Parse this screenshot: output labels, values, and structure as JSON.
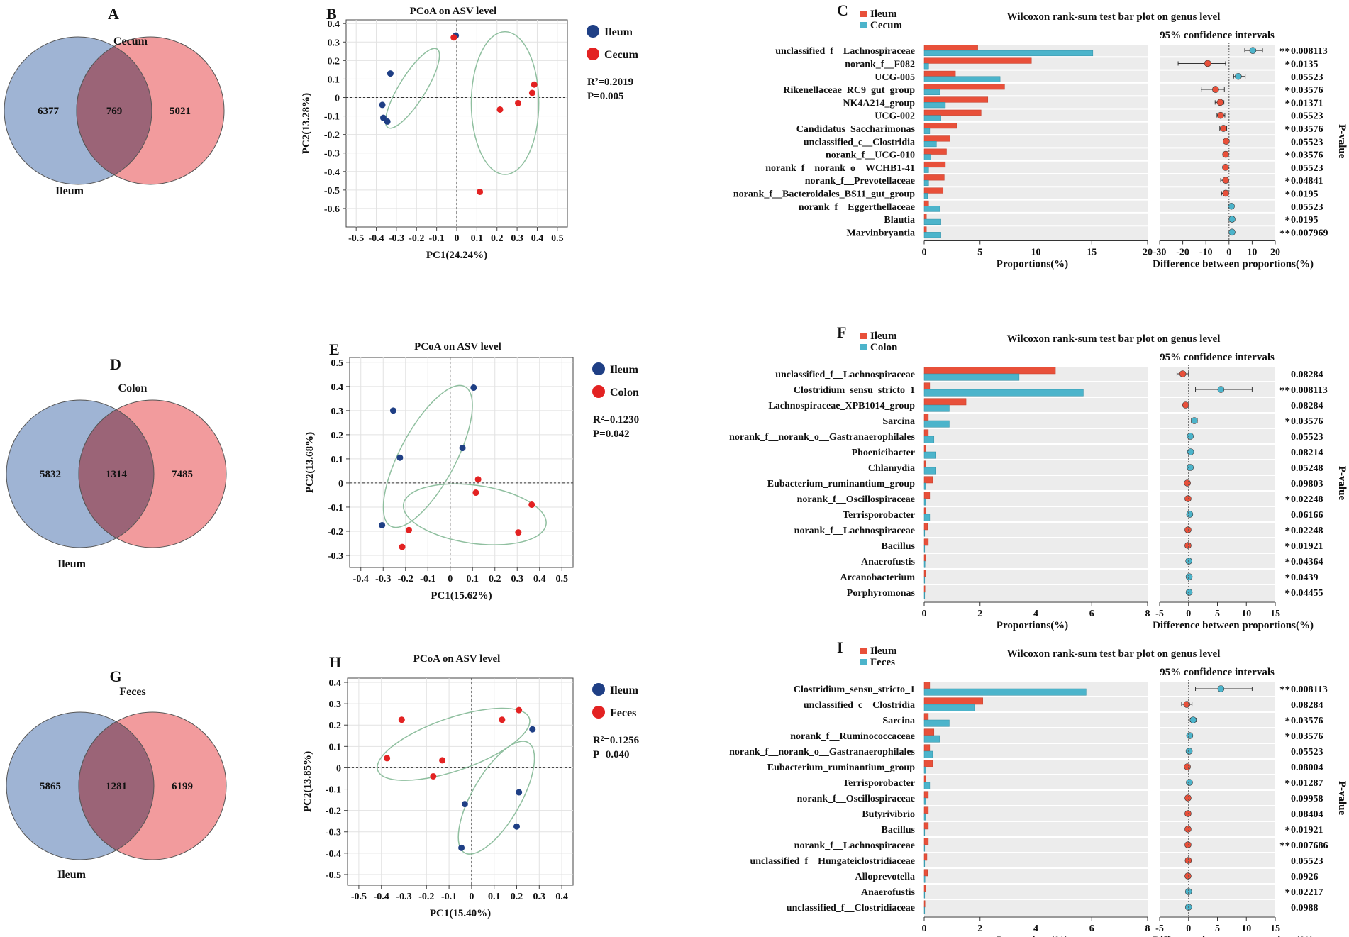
{
  "colors": {
    "ileum": "#e8503a",
    "ileum_dot": "#e32222",
    "blue_dot": "#1f3f85",
    "other": "#4cb4cb",
    "venn_blue": "#9fb4d4",
    "venn_red": "#f29b9d",
    "venn_overlap": "#9b6477",
    "ellipse": "#8fbf9f",
    "bar_bg": "#ececec",
    "star": "#e8503a"
  },
  "rows": [
    {
      "venn": {
        "panel_label": "A",
        "left_label": "Ileum",
        "right_label": "Cecum",
        "left_only": "6377",
        "shared": "769",
        "right_only": "5021"
      },
      "pcoa": {
        "panel_label": "B",
        "title": "PCoA on ASV level",
        "xlabel": "PC1(24.24%)",
        "ylabel": "PC2(13.28%)",
        "r2": "R²=0.2019",
        "p": "P=0.005",
        "legend": [
          "Ileum",
          "Cecum"
        ]
      },
      "wilcoxon": {
        "panel_label": "C",
        "title": "Wilcoxon rank-sum test bar plot on genus level",
        "ci_label": "95% confidence intervals",
        "legend": [
          "Ileum",
          "Cecum"
        ],
        "xlabel_left": "Proportions(%)",
        "xlabel_right": "Difference between proportions(%)",
        "pvalue_label": "P-value"
      }
    },
    {
      "venn": {
        "panel_label": "D",
        "left_label": "Ileum",
        "right_label": "Colon",
        "left_only": "5832",
        "shared": "1314",
        "right_only": "7485"
      },
      "pcoa": {
        "panel_label": "E",
        "title": "PCoA on ASV level",
        "xlabel": "PC1(15.62%)",
        "ylabel": "PC2(13.68%)",
        "r2": "R²=0.1230",
        "p": "P=0.042",
        "legend": [
          "Ileum",
          "Colon"
        ]
      },
      "wilcoxon": {
        "panel_label": "F",
        "title": "Wilcoxon rank-sum test bar plot on genus level",
        "ci_label": "95% confidence intervals",
        "legend": [
          "Ileum",
          "Colon"
        ],
        "xlabel_left": "Proportions(%)",
        "xlabel_right": "Difference between proportions(%)",
        "pvalue_label": "P-value"
      }
    },
    {
      "venn": {
        "panel_label": "G",
        "left_label": "Ileum",
        "right_label": "Feces",
        "left_only": "5865",
        "shared": "1281",
        "right_only": "6199"
      },
      "pcoa": {
        "panel_label": "H",
        "title": "PCoA on ASV level",
        "xlabel": "PC1(15.40%)",
        "ylabel": "PC2(13.85%)",
        "r2": "R²=0.1256",
        "p": "P=0.040",
        "legend": [
          "Ileum",
          "Feces"
        ]
      },
      "wilcoxon": {
        "panel_label": "I",
        "title": "Wilcoxon rank-sum test bar plot on genus level",
        "ci_label": "95% confidence intervals",
        "legend": [
          "Ileum",
          "Feces"
        ],
        "xlabel_left": "Proportions(%)",
        "xlabel_right": "Difference between proportions(%)",
        "pvalue_label": "P-value"
      }
    }
  ],
  "chart_data": [
    {
      "panel": "B",
      "type": "scatter",
      "title": "PCoA on ASV level",
      "xlabel": "PC1(24.24%)",
      "ylabel": "PC2(13.28%)",
      "xlim": [
        -0.55,
        0.55
      ],
      "ylim": [
        -0.7,
        0.42
      ],
      "xticks": [
        "-0.5",
        "-0.4",
        "-0.3",
        "-0.2",
        "-0.1",
        "0",
        "0.1",
        "0.2",
        "0.3",
        "0.4",
        "0.5"
      ],
      "xtick_values": [
        -0.5,
        -0.4,
        -0.3,
        -0.2,
        -0.1,
        0,
        0.1,
        0.2,
        0.3,
        0.4,
        0.5
      ],
      "yticks": [
        "0.4",
        "0.3",
        "0.2",
        "0.1",
        "0",
        "-0.1",
        "-0.2",
        "-0.3",
        "-0.4",
        "-0.5",
        "-0.6"
      ],
      "ytick_values": [
        0.4,
        0.3,
        0.2,
        0.1,
        0,
        -0.1,
        -0.2,
        -0.3,
        -0.4,
        -0.5,
        -0.6
      ],
      "series": [
        {
          "name": "Ileum",
          "points": [
            [
              -0.005,
              0.335
            ],
            [
              -0.33,
              0.13
            ],
            [
              -0.37,
              -0.04
            ],
            [
              -0.365,
              -0.11
            ],
            [
              -0.345,
              -0.13
            ]
          ],
          "ellipse": {
            "cx": -0.22,
            "cy": 0.05,
            "rx": 0.24,
            "ry": 0.068,
            "angle": -58
          }
        },
        {
          "name": "Cecum",
          "points": [
            [
              -0.015,
              0.325
            ],
            [
              0.115,
              -0.51
            ],
            [
              0.215,
              -0.065
            ],
            [
              0.305,
              -0.03
            ],
            [
              0.375,
              0.025
            ],
            [
              0.385,
              0.07
            ]
          ],
          "ellipse": {
            "cx": 0.24,
            "cy": -0.03,
            "rx": 0.175,
            "ry": 0.37,
            "angle": 0
          }
        }
      ]
    },
    {
      "panel": "C",
      "type": "bar",
      "title": "Wilcoxon rank-sum test bar plot on genus level",
      "categories": [
        "unclassified_f__Lachnospiraceae",
        "norank_f__F082",
        "UCG-005",
        "Rikenellaceae_RC9_gut_group",
        "NK4A214_group",
        "UCG-002",
        "Candidatus_Saccharimonas",
        "unclassified_c__Clostridia",
        "norank_f__UCG-010",
        "norank_f__norank_o__WCHB1-41",
        "norank_f__Prevotellaceae",
        "norank_f__Bacteroidales_BS11_gut_group",
        "norank_f__Eggerthellaceae",
        "Blautia",
        "Marvinbryantia"
      ],
      "series": [
        {
          "name": "Ileum",
          "values": [
            4.8,
            9.6,
            2.8,
            7.2,
            5.7,
            5.1,
            2.9,
            2.3,
            2.0,
            1.9,
            1.8,
            1.7,
            0.4,
            0.2,
            0.2
          ]
        },
        {
          "name": "Cecum",
          "values": [
            15.1,
            0.4,
            6.8,
            1.4,
            1.9,
            1.5,
            0.5,
            1.1,
            0.6,
            0.4,
            0.4,
            0.3,
            1.4,
            1.5,
            1.5
          ]
        }
      ],
      "xlim_left": [
        0,
        20
      ],
      "xticks_left": [
        "0",
        "5",
        "10",
        "15",
        "20"
      ],
      "difference": [
        10.3,
        -9.2,
        4.0,
        -5.8,
        -3.8,
        -3.6,
        -2.4,
        -1.2,
        -1.4,
        -1.5,
        -1.4,
        -1.4,
        1.0,
        1.3,
        1.3
      ],
      "ci_low": [
        6.8,
        -22.0,
        2.0,
        -12.0,
        -6.0,
        -5.2,
        -4.0,
        -2.4,
        -2.6,
        -2.5,
        -3.6,
        -3.2,
        0.4,
        0.7,
        0.7
      ],
      "ci_high": [
        14.5,
        -1.5,
        7.0,
        -2.0,
        -2.2,
        -1.8,
        -1.0,
        -0.2,
        -0.4,
        -0.6,
        -0.4,
        -0.4,
        1.8,
        2.0,
        2.0
      ],
      "xlim_right": [
        -30,
        20
      ],
      "xticks_right": [
        "-30",
        "-20",
        "-10",
        "0",
        "10",
        "20"
      ],
      "pvalues": [
        "0.008113",
        "0.0135",
        "0.05523",
        "0.03576",
        "0.01371",
        "0.05523",
        "0.03576",
        "0.05523",
        "0.03576",
        "0.05523",
        "0.04841",
        "0.0195",
        "0.05523",
        "0.0195",
        "0.007969"
      ],
      "stars": [
        "**",
        "*",
        "",
        "*",
        "*",
        "",
        "*",
        "",
        "*",
        "",
        "*",
        "*",
        "",
        "*",
        "**"
      ]
    },
    {
      "panel": "E",
      "type": "scatter",
      "title": "PCoA on ASV level",
      "xlabel": "PC1(15.62%)",
      "ylabel": "PC2(13.68%)",
      "xlim": [
        -0.45,
        0.55
      ],
      "ylim": [
        -0.35,
        0.52
      ],
      "xticks": [
        "-0.4",
        "-0.3",
        "-0.2",
        "-0.1",
        "0",
        "0.1",
        "0.2",
        "0.3",
        "0.4",
        "0.5"
      ],
      "xtick_values": [
        -0.4,
        -0.3,
        -0.2,
        -0.1,
        0,
        0.1,
        0.2,
        0.3,
        0.4,
        0.5
      ],
      "yticks": [
        "0.5",
        "0.4",
        "0.3",
        "0.2",
        "0.1",
        "0",
        "-0.1",
        "-0.2",
        "-0.3"
      ],
      "ytick_values": [
        0.5,
        0.4,
        0.3,
        0.2,
        0.1,
        0,
        -0.1,
        -0.2,
        -0.3
      ],
      "series": [
        {
          "name": "Ileum",
          "points": [
            [
              0.105,
              0.395
            ],
            [
              -0.255,
              0.3
            ],
            [
              0.055,
              0.145
            ],
            [
              -0.225,
              0.105
            ],
            [
              -0.305,
              -0.175
            ]
          ],
          "ellipse": {
            "cx": -0.1,
            "cy": 0.11,
            "rx": 0.34,
            "ry": 0.12,
            "angle": -62
          }
        },
        {
          "name": "Colon",
          "points": [
            [
              0.125,
              0.015
            ],
            [
              0.115,
              -0.04
            ],
            [
              0.365,
              -0.09
            ],
            [
              0.305,
              -0.205
            ],
            [
              -0.185,
              -0.195
            ],
            [
              -0.215,
              -0.265
            ]
          ],
          "ellipse": {
            "cx": 0.11,
            "cy": -0.13,
            "rx": 0.31,
            "ry": 0.125,
            "angle": 8
          }
        }
      ]
    },
    {
      "panel": "F",
      "type": "bar",
      "title": "Wilcoxon rank-sum test bar plot on genus level",
      "categories": [
        "unclassified_f__Lachnospiraceae",
        "Clostridium_sensu_stricto_1",
        "Lachnospiraceae_XPB1014_group",
        "Sarcina",
        "norank_f__norank_o__Gastranaerophilales",
        "Phoenicibacter",
        "Chlamydia",
        "Eubacterium_ruminantium_group",
        "norank_f__Oscillospiraceae",
        "Terrisporobacter",
        "norank_f__Lachnospiraceae",
        "Bacillus",
        "Anaerofustis",
        "Arcanobacterium",
        "Porphyromonas"
      ],
      "series": [
        {
          "name": "Ileum",
          "values": [
            4.7,
            0.2,
            1.5,
            0.15,
            0.15,
            0.05,
            0.05,
            0.3,
            0.2,
            0.05,
            0.12,
            0.15,
            0.05,
            0.05,
            0.03
          ]
        },
        {
          "name": "Colon",
          "values": [
            3.4,
            5.7,
            0.9,
            0.9,
            0.35,
            0.4,
            0.4,
            0.05,
            0.05,
            0.2,
            0.02,
            0.02,
            0.03,
            0.02,
            0.02
          ]
        }
      ],
      "xlim_left": [
        0,
        8
      ],
      "xticks_left": [
        "0",
        "2",
        "4",
        "6",
        "8"
      ],
      "difference": [
        -1.0,
        5.6,
        -0.5,
        1.0,
        0.3,
        0.35,
        0.3,
        -0.2,
        -0.1,
        0.2,
        -0.1,
        -0.1,
        0.05,
        0.1,
        0.1
      ],
      "ci_low": [
        -2.0,
        1.2,
        -0.9,
        0.5,
        0.1,
        0.1,
        0.1,
        -0.4,
        -0.2,
        0.05,
        -0.2,
        -0.2,
        -0.05,
        0.0,
        0.0
      ],
      "ci_high": [
        0.0,
        11.0,
        -0.1,
        1.5,
        0.5,
        0.6,
        0.5,
        0.0,
        0.0,
        0.35,
        0.0,
        0.0,
        0.15,
        0.2,
        0.2
      ],
      "xlim_right": [
        -5,
        15
      ],
      "xticks_right": [
        "-5",
        "0",
        "5",
        "10",
        "15"
      ],
      "pvalues": [
        "0.08284",
        "0.008113",
        "0.08284",
        "0.03576",
        "0.05523",
        "0.08214",
        "0.05248",
        "0.09803",
        "0.02248",
        "0.06166",
        "0.02248",
        "0.01921",
        "0.04364",
        "0.0439",
        "0.04455"
      ],
      "stars": [
        "",
        "**",
        "",
        "*",
        "",
        "",
        "",
        "",
        "*",
        "",
        "*",
        "*",
        "*",
        "*",
        "*"
      ]
    },
    {
      "panel": "H",
      "type": "scatter",
      "title": "PCoA on ASV level",
      "xlabel": "PC1(15.40%)",
      "ylabel": "PC2(13.85%)",
      "xlim": [
        -0.55,
        0.45
      ],
      "ylim": [
        -0.55,
        0.42
      ],
      "xticks": [
        "-0.5",
        "-0.4",
        "-0.3",
        "-0.2",
        "-0.1",
        "0",
        "0.1",
        "0.2",
        "0.3",
        "0.4"
      ],
      "xtick_values": [
        -0.5,
        -0.4,
        -0.3,
        -0.2,
        -0.1,
        0,
        0.1,
        0.2,
        0.3,
        0.4
      ],
      "yticks": [
        "0.4",
        "0.3",
        "0.2",
        "0.1",
        "0",
        "-0.1",
        "-0.2",
        "-0.3",
        "-0.4",
        "-0.5"
      ],
      "ytick_values": [
        0.4,
        0.3,
        0.2,
        0.1,
        0,
        -0.1,
        -0.2,
        -0.3,
        -0.4,
        -0.5
      ],
      "series": [
        {
          "name": "Ileum",
          "points": [
            [
              0.27,
              0.18
            ],
            [
              0.21,
              -0.115
            ],
            [
              -0.03,
              -0.17
            ],
            [
              0.2,
              -0.275
            ],
            [
              -0.045,
              -0.375
            ]
          ],
          "ellipse": {
            "cx": 0.11,
            "cy": -0.14,
            "rx": 0.29,
            "ry": 0.11,
            "angle": -60
          }
        },
        {
          "name": "Feces",
          "points": [
            [
              0.21,
              0.27
            ],
            [
              -0.31,
              0.225
            ],
            [
              0.135,
              0.225
            ],
            [
              -0.375,
              0.045
            ],
            [
              -0.13,
              0.035
            ],
            [
              -0.17,
              -0.04
            ]
          ],
          "ellipse": {
            "cx": -0.08,
            "cy": 0.11,
            "rx": 0.365,
            "ry": 0.12,
            "angle": -19
          }
        }
      ]
    },
    {
      "panel": "I",
      "type": "bar",
      "title": "Wilcoxon rank-sum test bar plot on genus level",
      "categories": [
        "Clostridium_sensu_stricto_1",
        "unclassified_c__Clostridia",
        "Sarcina",
        "norank_f__Ruminococcaceae",
        "norank_f__norank_o__Gastranaerophilales",
        "Eubacterium_ruminantium_group",
        "Terrisporobacter",
        "norank_f__Oscillospiraceae",
        "Butyrivibrio",
        "Bacillus",
        "norank_f__Lachnospiraceae",
        "unclassified_f__Hungateiclostridiaceae",
        "Alloprevotella",
        "Anaerofustis",
        "unclassified_f__Clostridiaceae"
      ],
      "series": [
        {
          "name": "Ileum",
          "values": [
            0.2,
            2.1,
            0.15,
            0.35,
            0.2,
            0.3,
            0.05,
            0.15,
            0.15,
            0.15,
            0.15,
            0.1,
            0.12,
            0.05,
            0.03
          ]
        },
        {
          "name": "Feces",
          "values": [
            5.8,
            1.8,
            0.9,
            0.55,
            0.3,
            0.05,
            0.2,
            0.05,
            0.05,
            0.02,
            0.02,
            0.02,
            0.03,
            0.02,
            0.02
          ]
        }
      ],
      "xlim_left": [
        0,
        8
      ],
      "xticks_left": [
        "0",
        "2",
        "4",
        "6",
        "8"
      ],
      "difference": [
        5.6,
        -0.3,
        0.8,
        0.2,
        0.1,
        -0.2,
        0.15,
        -0.1,
        -0.1,
        -0.1,
        -0.1,
        -0.05,
        -0.1,
        0.0,
        0.0
      ],
      "ci_low": [
        1.2,
        -1.2,
        0.3,
        -0.1,
        -0.1,
        -0.5,
        0.0,
        -0.3,
        -0.2,
        -0.2,
        -0.2,
        -0.15,
        -0.25,
        -0.1,
        -0.1
      ],
      "ci_high": [
        11.0,
        0.6,
        1.3,
        0.5,
        0.3,
        0.1,
        0.3,
        0.1,
        0.0,
        0.0,
        0.0,
        0.05,
        0.05,
        0.1,
        0.1
      ],
      "xlim_right": [
        -5,
        15
      ],
      "xticks_right": [
        "-5",
        "0",
        "5",
        "10",
        "15"
      ],
      "pvalues": [
        "0.008113",
        "0.08284",
        "0.03576",
        "0.03576",
        "0.05523",
        "0.08004",
        "0.01287",
        "0.09958",
        "0.08404",
        "0.01921",
        "0.007686",
        "0.05523",
        "0.0926",
        "0.02217",
        "0.0988"
      ],
      "stars": [
        "**",
        "",
        "*",
        "*",
        "",
        "",
        "*",
        "",
        "",
        "*",
        "**",
        "",
        "",
        "*",
        ""
      ]
    }
  ]
}
